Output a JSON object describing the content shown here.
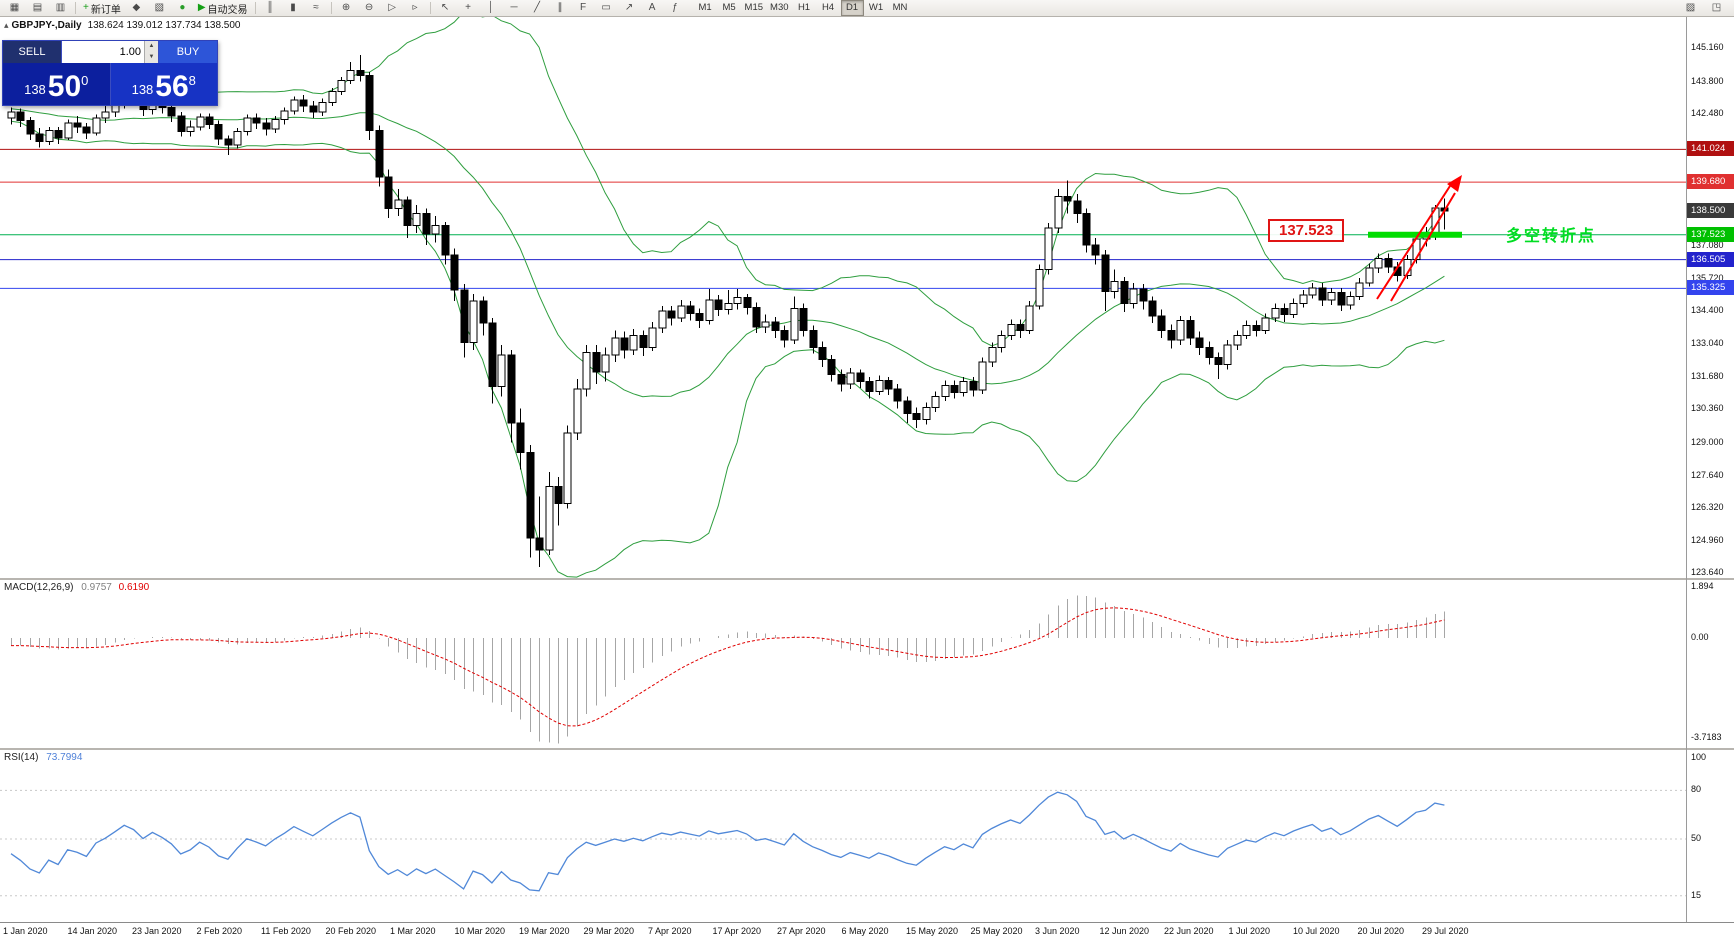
{
  "toolbar": {
    "groups": [
      {
        "name": "window-group",
        "items": [
          {
            "name": "new-chart-icon",
            "glyph": "▦"
          },
          {
            "name": "chart-profiles-icon",
            "glyph": "▤"
          },
          {
            "name": "window-layout-icon",
            "glyph": "▥"
          }
        ]
      },
      {
        "name": "trade-group",
        "items": [
          {
            "name": "new-order-button",
            "glyph": "+",
            "glyph_color": "#1a9e1a",
            "label": "新订单"
          },
          {
            "name": "alerts-icon",
            "glyph": "◆"
          },
          {
            "name": "mailbox-icon",
            "glyph": "▧"
          },
          {
            "name": "market-watch-icon",
            "glyph": "●",
            "glyph_color": "#2a9d2a"
          },
          {
            "name": "autotrading-button",
            "glyph": "▶",
            "glyph_color": "#16a016",
            "label": "自动交易"
          }
        ]
      },
      {
        "name": "chart-type-group",
        "items": [
          {
            "name": "bar-chart-icon",
            "glyph": "║"
          },
          {
            "name": "candlestick-chart-icon",
            "glyph": "▮"
          },
          {
            "name": "line-chart-icon",
            "glyph": "≈"
          }
        ]
      },
      {
        "name": "zoom-group",
        "items": [
          {
            "name": "zoom-in-icon",
            "glyph": "⊕"
          },
          {
            "name": "zoom-out-icon",
            "glyph": "⊖"
          },
          {
            "name": "auto-scroll-icon",
            "glyph": "▷"
          },
          {
            "name": "chart-shift-icon",
            "glyph": "▹"
          }
        ]
      },
      {
        "name": "objects-group",
        "items": [
          {
            "name": "cursor-icon",
            "glyph": "↖"
          },
          {
            "name": "crosshair-icon",
            "glyph": "+"
          },
          {
            "name": "vertical-line-icon",
            "glyph": "│"
          },
          {
            "name": "horizontal-line-icon",
            "glyph": "─"
          },
          {
            "name": "trendline-icon",
            "glyph": "╱"
          },
          {
            "name": "channel-icon",
            "glyph": "∥"
          },
          {
            "name": "fibonacci-icon",
            "glyph": "F"
          },
          {
            "name": "shapes-icon",
            "glyph": "▭"
          },
          {
            "name": "arrow-object-icon",
            "glyph": "↗"
          },
          {
            "name": "text-label-icon",
            "glyph": "A"
          },
          {
            "name": "indicators-icon",
            "glyph": "ƒ"
          }
        ]
      }
    ],
    "timeframes": [
      "M1",
      "M5",
      "M15",
      "M30",
      "H1",
      "H4",
      "D1",
      "W1",
      "MN"
    ],
    "active_timeframe": "D1",
    "right_items": [
      {
        "name": "chart-properties-icon",
        "glyph": "▨"
      },
      {
        "name": "fullscreen-icon",
        "glyph": "◳"
      }
    ]
  },
  "chart_header": {
    "symbol": "GBPJPY-,Daily",
    "ohlc": "138.624 139.012 137.734 138.500"
  },
  "trade_panel": {
    "sell_label": "SELL",
    "buy_label": "BUY",
    "volume": "1.00",
    "bid": {
      "prefix": "138",
      "big": "50",
      "sup": "0"
    },
    "ask": {
      "prefix": "138",
      "big": "56",
      "sup": "8"
    }
  },
  "price_axis": {
    "labels": [
      "145.160",
      "143.800",
      "142.480",
      "137.080",
      "135.720",
      "134.400",
      "133.040",
      "131.680",
      "130.360",
      "129.000",
      "127.640",
      "126.320",
      "124.960",
      "123.640"
    ],
    "badges": [
      {
        "text": "141.024",
        "color": "#b01010"
      },
      {
        "text": "139.680",
        "color": "#e03030"
      },
      {
        "text": "138.500",
        "color": "#3a3a3a"
      },
      {
        "text": "137.523",
        "color": "#00c000"
      },
      {
        "text": "136.505",
        "color": "#2222cc"
      },
      {
        "text": "135.325",
        "color": "#3344ee"
      }
    ]
  },
  "chart_data": {
    "type": "candlestick",
    "symbol": "GBPJPY-",
    "timeframe": "Daily",
    "ohlc_display": {
      "open": "138.624",
      "high": "139.012",
      "low": "137.734",
      "close": "138.500"
    },
    "price_range_visible": [
      123.64,
      146.0
    ],
    "x_labels": [
      "1 Jan 2020",
      "14 Jan 2020",
      "23 Jan 2020",
      "2 Feb 2020",
      "11 Feb 2020",
      "20 Feb 2020",
      "1 Mar 2020",
      "10 Mar 2020",
      "19 Mar 2020",
      "29 Mar 2020",
      "7 Apr 2020",
      "17 Apr 2020",
      "27 Apr 2020",
      "6 May 2020",
      "15 May 2020",
      "25 May 2020",
      "3 Jun 2020",
      "12 Jun 2020",
      "22 Jun 2020",
      "1 Jul 2020",
      "10 Jul 2020",
      "20 Jul 2020",
      "29 Jul 2020"
    ],
    "warmup_closes": [
      144.0,
      143.8,
      143.5,
      143.2,
      143.4,
      143.0,
      142.8,
      143.1,
      142.9,
      142.6,
      142.8,
      143.0,
      142.7,
      142.5,
      142.8,
      143.2,
      143.0,
      142.7,
      142.4,
      142.6,
      142.9,
      142.6,
      142.3,
      142.5,
      142.4,
      142.3
    ],
    "candles": [
      [
        142.3,
        142.75,
        142.05,
        142.55
      ],
      [
        142.55,
        142.7,
        141.95,
        142.2
      ],
      [
        142.2,
        142.35,
        141.4,
        141.65
      ],
      [
        141.65,
        141.9,
        141.1,
        141.35
      ],
      [
        141.35,
        141.95,
        141.2,
        141.8
      ],
      [
        141.8,
        141.95,
        141.25,
        141.5
      ],
      [
        141.5,
        142.25,
        141.4,
        142.1
      ],
      [
        142.1,
        142.4,
        141.7,
        141.95
      ],
      [
        141.95,
        142.1,
        141.45,
        141.7
      ],
      [
        141.7,
        142.45,
        141.6,
        142.3
      ],
      [
        142.3,
        142.8,
        142.1,
        142.55
      ],
      [
        142.55,
        143.05,
        142.35,
        142.9
      ],
      [
        142.9,
        143.45,
        142.7,
        143.3
      ],
      [
        143.3,
        143.5,
        142.85,
        143.1
      ],
      [
        143.1,
        143.25,
        142.4,
        142.65
      ],
      [
        142.65,
        143.15,
        142.45,
        143.0
      ],
      [
        143.0,
        143.2,
        142.5,
        142.75
      ],
      [
        142.75,
        142.95,
        142.15,
        142.4
      ],
      [
        142.4,
        142.55,
        141.55,
        141.75
      ],
      [
        141.75,
        142.2,
        141.55,
        141.95
      ],
      [
        141.95,
        142.5,
        141.8,
        142.35
      ],
      [
        142.35,
        142.5,
        141.85,
        142.05
      ],
      [
        142.05,
        142.2,
        141.2,
        141.45
      ],
      [
        141.45,
        141.6,
        140.8,
        141.2
      ],
      [
        141.2,
        141.9,
        141.05,
        141.75
      ],
      [
        141.75,
        142.45,
        141.6,
        142.3
      ],
      [
        142.3,
        142.5,
        141.85,
        142.1
      ],
      [
        142.1,
        142.3,
        141.6,
        141.85
      ],
      [
        141.85,
        142.4,
        141.7,
        142.25
      ],
      [
        142.25,
        142.75,
        142.05,
        142.6
      ],
      [
        142.6,
        143.2,
        142.45,
        143.05
      ],
      [
        143.05,
        143.25,
        142.55,
        142.8
      ],
      [
        142.8,
        143.0,
        142.3,
        142.55
      ],
      [
        142.55,
        143.1,
        142.4,
        142.95
      ],
      [
        142.95,
        143.55,
        142.8,
        143.4
      ],
      [
        143.4,
        144.0,
        143.25,
        143.85
      ],
      [
        143.85,
        144.6,
        143.7,
        144.25
      ],
      [
        144.25,
        144.9,
        143.8,
        144.05
      ],
      [
        144.05,
        144.2,
        141.4,
        141.8
      ],
      [
        141.8,
        142.0,
        139.5,
        139.9
      ],
      [
        139.9,
        140.2,
        138.2,
        138.6
      ],
      [
        138.6,
        139.4,
        138.3,
        138.95
      ],
      [
        138.95,
        139.1,
        137.4,
        137.9
      ],
      [
        137.9,
        138.75,
        137.6,
        138.4
      ],
      [
        138.4,
        138.6,
        137.1,
        137.55
      ],
      [
        137.55,
        138.3,
        137.2,
        137.9
      ],
      [
        137.9,
        138.05,
        136.3,
        136.7
      ],
      [
        136.7,
        136.95,
        134.8,
        135.25
      ],
      [
        135.25,
        135.5,
        132.5,
        133.1
      ],
      [
        133.1,
        135.1,
        132.8,
        134.8
      ],
      [
        134.8,
        135.0,
        133.4,
        133.9
      ],
      [
        133.9,
        134.1,
        130.6,
        131.3
      ],
      [
        131.3,
        133.0,
        130.9,
        132.6
      ],
      [
        132.6,
        132.8,
        129.0,
        129.8
      ],
      [
        129.8,
        130.4,
        127.9,
        128.6
      ],
      [
        128.6,
        128.9,
        124.3,
        125.1
      ],
      [
        125.1,
        126.8,
        123.9,
        124.6
      ],
      [
        124.6,
        127.8,
        124.4,
        127.2
      ],
      [
        127.2,
        127.6,
        125.6,
        126.5
      ],
      [
        126.5,
        129.7,
        126.3,
        129.4
      ],
      [
        129.4,
        131.6,
        129.1,
        131.2
      ],
      [
        131.2,
        133.0,
        130.9,
        132.7
      ],
      [
        132.7,
        133.0,
        131.4,
        131.9
      ],
      [
        131.9,
        132.9,
        131.5,
        132.6
      ],
      [
        132.6,
        133.6,
        132.3,
        133.3
      ],
      [
        133.3,
        133.55,
        132.45,
        132.8
      ],
      [
        132.8,
        133.65,
        132.6,
        133.4
      ],
      [
        133.4,
        133.6,
        132.55,
        132.9
      ],
      [
        132.9,
        133.95,
        132.75,
        133.7
      ],
      [
        133.7,
        134.6,
        133.5,
        134.4
      ],
      [
        134.4,
        134.6,
        133.8,
        134.1
      ],
      [
        134.1,
        134.85,
        133.95,
        134.6
      ],
      [
        134.6,
        134.8,
        134.0,
        134.3
      ],
      [
        134.3,
        134.5,
        133.7,
        134.0
      ],
      [
        134.0,
        135.3,
        133.85,
        134.85
      ],
      [
        134.85,
        135.05,
        134.2,
        134.45
      ],
      [
        134.45,
        135.25,
        134.25,
        134.7
      ],
      [
        134.7,
        135.3,
        134.45,
        134.95
      ],
      [
        134.95,
        135.1,
        134.25,
        134.55
      ],
      [
        134.55,
        134.75,
        133.5,
        133.75
      ],
      [
        133.75,
        134.25,
        133.5,
        133.95
      ],
      [
        133.95,
        134.15,
        133.3,
        133.6
      ],
      [
        133.6,
        133.8,
        132.9,
        133.2
      ],
      [
        133.2,
        135.0,
        133.05,
        134.5
      ],
      [
        134.5,
        134.7,
        133.35,
        133.6
      ],
      [
        133.6,
        133.8,
        132.65,
        132.9
      ],
      [
        132.9,
        133.15,
        132.1,
        132.4
      ],
      [
        132.4,
        132.6,
        131.5,
        131.8
      ],
      [
        131.8,
        132.0,
        131.1,
        131.4
      ],
      [
        131.4,
        132.05,
        131.2,
        131.85
      ],
      [
        131.85,
        132.0,
        131.25,
        131.5
      ],
      [
        131.5,
        131.7,
        130.8,
        131.1
      ],
      [
        131.1,
        131.75,
        130.95,
        131.55
      ],
      [
        131.55,
        131.7,
        130.95,
        131.2
      ],
      [
        131.2,
        131.4,
        130.4,
        130.7
      ],
      [
        130.7,
        130.9,
        129.8,
        130.2
      ],
      [
        130.2,
        130.45,
        129.6,
        129.95
      ],
      [
        129.95,
        130.65,
        129.75,
        130.45
      ],
      [
        130.45,
        131.1,
        130.25,
        130.9
      ],
      [
        130.9,
        131.55,
        130.7,
        131.35
      ],
      [
        131.35,
        131.55,
        130.8,
        131.05
      ],
      [
        131.05,
        131.7,
        130.9,
        131.5
      ],
      [
        131.5,
        131.7,
        130.9,
        131.15
      ],
      [
        131.15,
        132.5,
        131.0,
        132.3
      ],
      [
        132.3,
        133.1,
        132.1,
        132.9
      ],
      [
        132.9,
        133.6,
        132.7,
        133.4
      ],
      [
        133.4,
        134.05,
        133.2,
        133.85
      ],
      [
        133.85,
        134.05,
        133.3,
        133.6
      ],
      [
        133.6,
        134.8,
        133.45,
        134.6
      ],
      [
        134.6,
        136.3,
        134.45,
        136.1
      ],
      [
        136.1,
        138.0,
        135.9,
        137.8
      ],
      [
        137.8,
        139.4,
        137.6,
        139.1
      ],
      [
        139.1,
        139.75,
        138.4,
        138.9
      ],
      [
        138.9,
        139.2,
        138.0,
        138.4
      ],
      [
        138.4,
        138.6,
        136.8,
        137.1
      ],
      [
        137.1,
        137.4,
        136.3,
        136.7
      ],
      [
        136.7,
        136.9,
        134.4,
        135.2
      ],
      [
        135.2,
        136.1,
        134.9,
        135.6
      ],
      [
        135.6,
        135.8,
        134.35,
        134.7
      ],
      [
        134.7,
        135.55,
        134.5,
        135.3
      ],
      [
        135.3,
        135.5,
        134.45,
        134.8
      ],
      [
        134.8,
        135.0,
        133.9,
        134.2
      ],
      [
        134.2,
        134.45,
        133.3,
        133.6
      ],
      [
        133.6,
        133.85,
        132.85,
        133.2
      ],
      [
        133.2,
        134.2,
        133.0,
        134.0
      ],
      [
        134.0,
        134.2,
        133.0,
        133.3
      ],
      [
        133.3,
        133.55,
        132.6,
        132.9
      ],
      [
        132.9,
        133.15,
        132.2,
        132.5
      ],
      [
        132.5,
        132.7,
        131.6,
        132.2
      ],
      [
        132.2,
        133.2,
        132.0,
        133.0
      ],
      [
        133.0,
        133.6,
        132.8,
        133.4
      ],
      [
        133.4,
        134.0,
        133.25,
        133.8
      ],
      [
        133.8,
        134.0,
        133.35,
        133.6
      ],
      [
        133.6,
        134.3,
        133.45,
        134.1
      ],
      [
        134.1,
        134.7,
        133.95,
        134.5
      ],
      [
        134.5,
        134.7,
        133.95,
        134.25
      ],
      [
        134.25,
        134.9,
        134.1,
        134.7
      ],
      [
        134.7,
        135.25,
        134.55,
        135.05
      ],
      [
        135.05,
        135.55,
        134.9,
        135.35
      ],
      [
        135.35,
        135.55,
        134.6,
        134.85
      ],
      [
        134.85,
        135.35,
        134.65,
        135.15
      ],
      [
        135.15,
        135.35,
        134.4,
        134.65
      ],
      [
        134.65,
        135.2,
        134.45,
        135.0
      ],
      [
        135.0,
        135.75,
        134.85,
        135.55
      ],
      [
        135.55,
        136.35,
        135.4,
        136.15
      ],
      [
        136.15,
        136.75,
        135.95,
        136.55
      ],
      [
        136.55,
        136.75,
        135.95,
        136.2
      ],
      [
        136.2,
        136.4,
        135.6,
        135.85
      ],
      [
        135.85,
        136.7,
        135.7,
        136.5
      ],
      [
        136.5,
        137.55,
        136.35,
        137.35
      ],
      [
        137.35,
        137.85,
        137.05,
        137.6
      ],
      [
        137.6,
        138.75,
        137.3,
        138.62
      ],
      [
        138.62,
        139.012,
        137.734,
        138.5
      ]
    ],
    "overlays": {
      "bollinger_bands": {
        "period": 20,
        "deviations": 2,
        "color": "#2f9e3f"
      }
    },
    "horizontal_lines": [
      {
        "price": 141.024,
        "color": "#b01010"
      },
      {
        "price": 139.68,
        "color": "#e03030"
      },
      {
        "price": 137.523,
        "color": "#00b050"
      },
      {
        "price": 136.505,
        "color": "#2222cc"
      },
      {
        "price": 135.325,
        "color": "#3344ee"
      }
    ],
    "indicators": [
      {
        "type": "macd",
        "title": "MACD(12,26,9)",
        "display_values": [
          "0.9757",
          "0.6190"
        ],
        "histogram_color": "#a6a6a6",
        "signal_color": "#e00000",
        "axis_labels": [
          "1.894",
          "0.00",
          "-3.7183"
        ]
      },
      {
        "type": "rsi",
        "title": "RSI(14)",
        "display_values": [
          "73.7994"
        ],
        "color": "#5088d8",
        "axis_labels": [
          "100",
          "80",
          "50",
          "15"
        ]
      }
    ],
    "annotations": [
      {
        "type": "price-label-box",
        "text": "137.523",
        "color": "#e01515"
      },
      {
        "type": "support-segment",
        "price": 137.523,
        "color": "#00dd00"
      },
      {
        "type": "trend-arrow",
        "direction": "up",
        "color": "#ff0000"
      },
      {
        "type": "text",
        "text": "多空转折点",
        "color": "#00dd22"
      }
    ]
  }
}
